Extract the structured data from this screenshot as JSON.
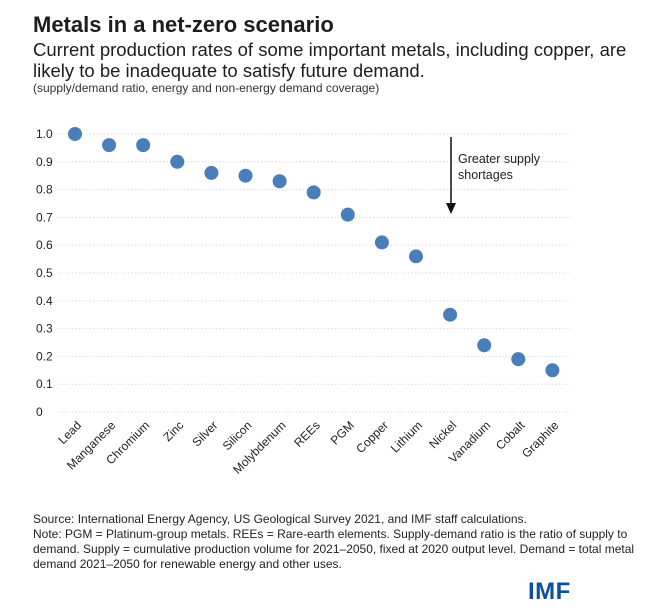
{
  "header": {
    "title": "Metals in a net-zero scenario",
    "subtitle": "Current production rates of some important metals, including copper, are likely to be inadequate to satisfy future demand.",
    "note": "(supply/demand ratio, energy and non-energy demand coverage)"
  },
  "chart_data": {
    "type": "scatter",
    "title": "Metals in a net-zero scenario",
    "xlabel": "",
    "ylabel": "",
    "ylim": [
      0,
      1.0
    ],
    "grid": true,
    "y_ticks": [
      "0",
      "0.1",
      "0.2",
      "0.3",
      "0.4",
      "0.5",
      "0.6",
      "0.7",
      "0.8",
      "0.9",
      "1.0"
    ],
    "categories": [
      "Lead",
      "Manganese",
      "Chromium",
      "Zinc",
      "Silver",
      "Silicon",
      "Molybdenum",
      "REEs",
      "PGM",
      "Copper",
      "Lithium",
      "Nickel",
      "Vanadium",
      "Cobalt",
      "Graphite"
    ],
    "values": [
      1.0,
      0.96,
      0.96,
      0.9,
      0.86,
      0.85,
      0.83,
      0.79,
      0.71,
      0.61,
      0.56,
      0.35,
      0.24,
      0.19,
      0.15
    ],
    "point_color": "#4a7ebb",
    "annotation": {
      "text_line1": "Greater supply",
      "text_line2": "shortages"
    }
  },
  "footer": {
    "source": "Source: International Energy Agency, US Geological Survey 2021, and IMF staff calculations.",
    "note": "Note: PGM = Platinum-group metals. REEs = Rare-earth elements. Supply-demand ratio is the ratio of supply to demand. Supply = cumulative production volume for 2021–2050, fixed at 2020 output level. Demand = total metal demand 2021–2050 for renewable energy and other uses.",
    "logo": "IMF"
  }
}
